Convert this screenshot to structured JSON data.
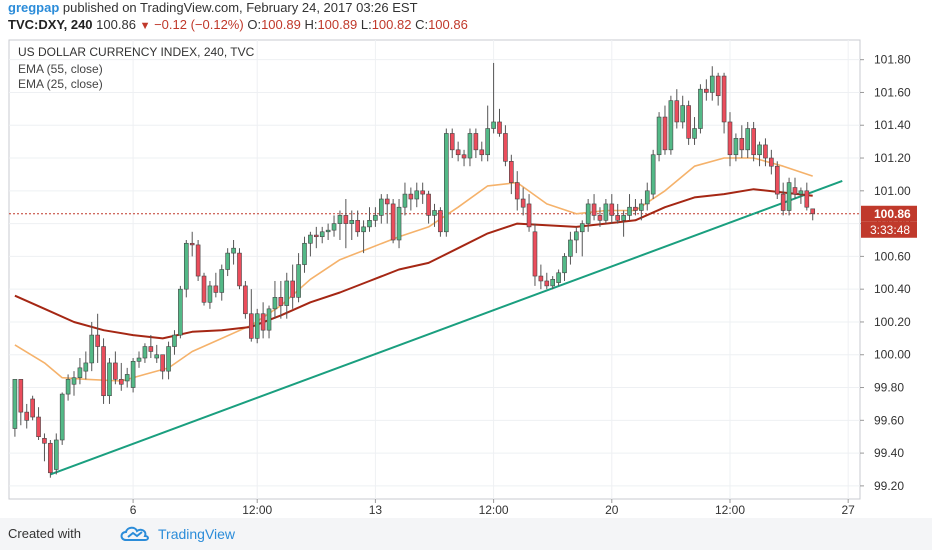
{
  "header": {
    "user": "gregpap",
    "published": "published on TradingView.com, February 24, 2017 03:26 EST",
    "symbol": "TVC:DXY, 240",
    "last": "100.86",
    "change": "−0.12 (−0.12%)",
    "o_label": "O:",
    "o_value": "100.89",
    "h_label": "H:",
    "h_value": "100.89",
    "l_label": "L:",
    "l_value": "100.82",
    "c_label": "C:",
    "c_value": "100.86"
  },
  "footer": {
    "created_with": "Created with",
    "brand": "TradingView"
  },
  "colors": {
    "up": "#53b987",
    "down": "#eb4d5c",
    "ema55": "#a52714",
    "ema25": "#f5b26b",
    "trend": "#1a9f7f",
    "badge": "#c0392b"
  },
  "chart_data": {
    "type": "candlestick",
    "title": "US DOLLAR CURRENCY INDEX, 240, TVC",
    "legend": [
      "EMA (55, close)",
      "EMA (25, close)"
    ],
    "y_ticks": [
      "101.80",
      "101.60",
      "101.40",
      "101.20",
      "101.00",
      "100.80",
      "100.60",
      "100.40",
      "100.20",
      "100.00",
      "99.80",
      "99.60",
      "99.40",
      "99.20"
    ],
    "ylim": [
      99.12,
      101.92
    ],
    "x_ticks": [
      {
        "label": "6",
        "i": 20
      },
      {
        "label": "12:00",
        "i": 41
      },
      {
        "label": "13",
        "i": 61
      },
      {
        "label": "12:00",
        "i": 81
      },
      {
        "label": "20",
        "i": 101
      },
      {
        "label": "12:00",
        "i": 121
      },
      {
        "label": "27",
        "i": 141
      }
    ],
    "x_range": [
      -1,
      143
    ],
    "last_price": "100.86",
    "countdown": "3:33:48",
    "candles": [
      [
        0,
        99.55,
        99.85,
        99.5,
        99.85
      ],
      [
        1,
        99.85,
        99.85,
        99.57,
        99.65
      ],
      [
        2,
        99.65,
        99.7,
        99.55,
        99.6
      ],
      [
        3,
        99.73,
        99.75,
        99.6,
        99.62
      ],
      [
        4,
        99.62,
        99.68,
        99.48,
        99.5
      ],
      [
        5,
        99.49,
        99.52,
        99.35,
        99.46
      ],
      [
        6,
        99.46,
        99.48,
        99.25,
        99.28
      ],
      [
        7,
        99.3,
        99.52,
        99.27,
        99.48
      ],
      [
        8,
        99.48,
        99.77,
        99.45,
        99.76
      ],
      [
        9,
        99.76,
        99.88,
        99.72,
        99.85
      ],
      [
        10,
        99.82,
        99.9,
        99.75,
        99.86
      ],
      [
        11,
        99.86,
        99.98,
        99.82,
        99.92
      ],
      [
        12,
        99.9,
        100.02,
        99.85,
        99.95
      ],
      [
        13,
        99.95,
        100.2,
        99.9,
        100.12
      ],
      [
        14,
        100.12,
        100.25,
        99.95,
        100.05
      ],
      [
        15,
        100.05,
        100.1,
        99.7,
        99.75
      ],
      [
        16,
        99.75,
        99.98,
        99.7,
        99.95
      ],
      [
        17,
        99.95,
        100.02,
        99.82,
        99.85
      ],
      [
        18,
        99.85,
        99.95,
        99.78,
        99.82
      ],
      [
        19,
        99.84,
        99.92,
        99.8,
        99.88
      ],
      [
        20,
        99.8,
        99.98,
        99.77,
        99.96
      ],
      [
        21,
        99.96,
        100.02,
        99.92,
        99.98
      ],
      [
        22,
        99.98,
        100.07,
        99.95,
        100.05
      ],
      [
        23,
        100.05,
        100.12,
        99.98,
        100.02
      ],
      [
        24,
        99.98,
        100.06,
        99.95,
        100.0
      ],
      [
        25,
        100.0,
        100.0,
        99.85,
        99.9
      ],
      [
        26,
        99.9,
        100.08,
        99.85,
        100.05
      ],
      [
        27,
        100.05,
        100.15,
        100.0,
        100.12
      ],
      [
        28,
        100.12,
        100.42,
        100.1,
        100.4
      ],
      [
        29,
        100.4,
        100.7,
        100.35,
        100.68
      ],
      [
        30,
        100.68,
        100.75,
        100.6,
        100.67
      ],
      [
        31,
        100.67,
        100.7,
        100.45,
        100.48
      ],
      [
        32,
        100.48,
        100.5,
        100.3,
        100.32
      ],
      [
        33,
        100.32,
        100.45,
        100.28,
        100.42
      ],
      [
        34,
        100.42,
        100.5,
        100.35,
        100.38
      ],
      [
        35,
        100.38,
        100.55,
        100.33,
        100.52
      ],
      [
        36,
        100.52,
        100.65,
        100.48,
        100.62
      ],
      [
        37,
        100.62,
        100.7,
        100.55,
        100.65
      ],
      [
        38,
        100.62,
        100.65,
        100.4,
        100.42
      ],
      [
        39,
        100.42,
        100.45,
        100.22,
        100.25
      ],
      [
        40,
        100.25,
        100.4,
        100.08,
        100.1
      ],
      [
        41,
        100.1,
        100.28,
        100.07,
        100.25
      ],
      [
        42,
        100.25,
        100.32,
        100.1,
        100.15
      ],
      [
        43,
        100.15,
        100.3,
        100.1,
        100.28
      ],
      [
        44,
        100.28,
        100.45,
        100.22,
        100.35
      ],
      [
        45,
        100.35,
        100.45,
        100.22,
        100.3
      ],
      [
        46,
        100.3,
        100.5,
        100.22,
        100.45
      ],
      [
        47,
        100.45,
        100.55,
        100.28,
        100.35
      ],
      [
        48,
        100.35,
        100.62,
        100.32,
        100.55
      ],
      [
        49,
        100.55,
        100.72,
        100.5,
        100.68
      ],
      [
        50,
        100.68,
        100.75,
        100.6,
        100.73
      ],
      [
        51,
        100.73,
        100.78,
        100.65,
        100.72
      ],
      [
        52,
        100.72,
        100.78,
        100.68,
        100.75
      ],
      [
        53,
        100.75,
        100.8,
        100.7,
        100.76
      ],
      [
        54,
        100.76,
        100.85,
        100.72,
        100.8
      ],
      [
        55,
        100.8,
        100.88,
        100.7,
        100.85
      ],
      [
        56,
        100.85,
        100.95,
        100.65,
        100.8
      ],
      [
        57,
        100.8,
        100.88,
        100.7,
        100.82
      ],
      [
        58,
        100.82,
        100.88,
        100.72,
        100.75
      ],
      [
        59,
        100.75,
        100.82,
        100.62,
        100.78
      ],
      [
        60,
        100.78,
        100.9,
        100.75,
        100.82
      ],
      [
        61,
        100.82,
        100.9,
        100.78,
        100.85
      ],
      [
        62,
        100.85,
        100.98,
        100.8,
        100.95
      ],
      [
        63,
        100.95,
        100.98,
        100.8,
        100.92
      ],
      [
        64,
        100.92,
        100.95,
        100.68,
        100.7
      ],
      [
        65,
        100.7,
        100.95,
        100.65,
        100.9
      ],
      [
        66,
        100.9,
        101.05,
        100.85,
        100.98
      ],
      [
        67,
        100.98,
        101.02,
        100.88,
        100.95
      ],
      [
        68,
        100.95,
        101.05,
        100.9,
        101.0
      ],
      [
        69,
        101.0,
        101.05,
        100.92,
        100.98
      ],
      [
        70,
        100.98,
        101.0,
        100.8,
        100.85
      ],
      [
        71,
        100.85,
        100.92,
        100.78,
        100.88
      ],
      [
        72,
        100.88,
        100.9,
        100.72,
        100.75
      ],
      [
        73,
        100.75,
        101.38,
        100.72,
        101.35
      ],
      [
        74,
        101.35,
        101.38,
        101.2,
        101.25
      ],
      [
        75,
        101.25,
        101.3,
        101.18,
        101.22
      ],
      [
        76,
        101.22,
        101.25,
        101.15,
        101.2
      ],
      [
        77,
        101.2,
        101.38,
        101.15,
        101.35
      ],
      [
        78,
        101.35,
        101.38,
        101.2,
        101.25
      ],
      [
        79,
        101.25,
        101.3,
        101.18,
        101.22
      ],
      [
        80,
        101.22,
        101.52,
        101.18,
        101.38
      ],
      [
        81,
        101.38,
        101.78,
        101.35,
        101.42
      ],
      [
        82,
        101.42,
        101.5,
        101.33,
        101.35
      ],
      [
        83,
        101.35,
        101.4,
        101.15,
        101.18
      ],
      [
        84,
        101.18,
        101.22,
        100.98,
        101.05
      ],
      [
        85,
        101.05,
        101.12,
        100.88,
        100.95
      ],
      [
        86,
        100.95,
        101.02,
        100.85,
        100.9
      ],
      [
        87,
        100.92,
        100.98,
        100.75,
        100.78
      ],
      [
        88,
        100.75,
        100.8,
        100.42,
        100.48
      ],
      [
        89,
        100.48,
        100.55,
        100.4,
        100.45
      ],
      [
        90,
        100.45,
        100.5,
        100.4,
        100.42
      ],
      [
        91,
        100.42,
        100.48,
        100.4,
        100.46
      ],
      [
        92,
        100.44,
        100.52,
        100.42,
        100.5
      ],
      [
        93,
        100.5,
        100.62,
        100.45,
        100.6
      ],
      [
        94,
        100.6,
        100.75,
        100.55,
        100.7
      ],
      [
        95,
        100.7,
        100.78,
        100.62,
        100.75
      ],
      [
        96,
        100.75,
        100.82,
        100.6,
        100.8
      ],
      [
        97,
        100.8,
        100.95,
        100.75,
        100.92
      ],
      [
        98,
        100.92,
        100.98,
        100.82,
        100.85
      ],
      [
        99,
        100.85,
        100.9,
        100.78,
        100.82
      ],
      [
        100,
        100.82,
        100.95,
        100.8,
        100.92
      ],
      [
        101,
        100.92,
        100.98,
        100.8,
        100.85
      ],
      [
        102,
        100.85,
        100.92,
        100.8,
        100.82
      ],
      [
        103,
        100.82,
        100.88,
        100.72,
        100.85
      ],
      [
        104,
        100.85,
        100.98,
        100.82,
        100.9
      ],
      [
        105,
        100.9,
        100.95,
        100.85,
        100.88
      ],
      [
        106,
        100.88,
        100.95,
        100.82,
        100.92
      ],
      [
        107,
        100.92,
        101.05,
        100.88,
        101.0
      ],
      [
        108,
        100.98,
        101.25,
        100.95,
        101.22
      ],
      [
        109,
        101.22,
        101.48,
        101.18,
        101.45
      ],
      [
        110,
        101.45,
        101.52,
        101.22,
        101.25
      ],
      [
        111,
        101.25,
        101.58,
        101.22,
        101.55
      ],
      [
        112,
        101.55,
        101.62,
        101.38,
        101.42
      ],
      [
        113,
        101.42,
        101.58,
        101.38,
        101.52
      ],
      [
        114,
        101.52,
        101.55,
        101.28,
        101.32
      ],
      [
        115,
        101.32,
        101.45,
        101.28,
        101.38
      ],
      [
        116,
        101.38,
        101.65,
        101.35,
        101.62
      ],
      [
        117,
        101.62,
        101.68,
        101.55,
        101.6
      ],
      [
        118,
        101.6,
        101.76,
        101.55,
        101.7
      ],
      [
        119,
        101.7,
        101.72,
        101.52,
        101.58
      ],
      [
        120,
        101.7,
        101.72,
        101.35,
        101.42
      ],
      [
        121,
        101.42,
        101.48,
        101.15,
        101.22
      ],
      [
        122,
        101.22,
        101.35,
        101.18,
        101.32
      ],
      [
        123,
        101.32,
        101.4,
        101.2,
        101.25
      ],
      [
        124,
        101.25,
        101.42,
        101.2,
        101.38
      ],
      [
        125,
        101.38,
        101.42,
        101.18,
        101.22
      ],
      [
        126,
        101.22,
        101.3,
        101.15,
        101.28
      ],
      [
        127,
        101.28,
        101.32,
        101.15,
        101.2
      ],
      [
        128,
        101.2,
        101.25,
        101.1,
        101.15
      ],
      [
        129,
        101.15,
        101.18,
        100.95,
        100.98
      ],
      [
        130,
        100.98,
        101.05,
        100.85,
        100.88
      ],
      [
        131,
        100.88,
        101.08,
        100.85,
        101.05
      ],
      [
        132,
        101.02,
        101.08,
        100.95,
        100.98
      ],
      [
        133,
        100.98,
        101.02,
        100.92,
        101.0
      ],
      [
        134,
        101.0,
        101.05,
        100.88,
        100.9
      ],
      [
        135,
        100.89,
        100.89,
        100.82,
        100.86
      ]
    ],
    "ema55": [
      [
        0,
        100.36
      ],
      [
        5,
        100.28
      ],
      [
        10,
        100.2
      ],
      [
        15,
        100.15
      ],
      [
        20,
        100.12
      ],
      [
        25,
        100.1
      ],
      [
        30,
        100.14
      ],
      [
        35,
        100.15
      ],
      [
        40,
        100.17
      ],
      [
        45,
        100.24
      ],
      [
        50,
        100.32
      ],
      [
        55,
        100.38
      ],
      [
        60,
        100.45
      ],
      [
        65,
        100.52
      ],
      [
        70,
        100.56
      ],
      [
        75,
        100.65
      ],
      [
        80,
        100.74
      ],
      [
        85,
        100.8
      ],
      [
        90,
        100.79
      ],
      [
        95,
        100.78
      ],
      [
        100,
        100.8
      ],
      [
        105,
        100.82
      ],
      [
        110,
        100.9
      ],
      [
        115,
        100.96
      ],
      [
        120,
        100.98
      ],
      [
        125,
        101.01
      ],
      [
        130,
        100.99
      ],
      [
        135,
        100.97
      ]
    ],
    "ema25": [
      [
        0,
        100.06
      ],
      [
        5,
        99.95
      ],
      [
        8,
        99.86
      ],
      [
        12,
        99.85
      ],
      [
        18,
        99.84
      ],
      [
        22,
        99.88
      ],
      [
        26,
        99.92
      ],
      [
        30,
        100.02
      ],
      [
        35,
        100.1
      ],
      [
        40,
        100.18
      ],
      [
        45,
        100.3
      ],
      [
        50,
        100.46
      ],
      [
        55,
        100.58
      ],
      [
        60,
        100.65
      ],
      [
        65,
        100.72
      ],
      [
        70,
        100.78
      ],
      [
        75,
        100.9
      ],
      [
        80,
        101.03
      ],
      [
        85,
        101.05
      ],
      [
        90,
        100.92
      ],
      [
        95,
        100.86
      ],
      [
        100,
        100.88
      ],
      [
        105,
        100.88
      ],
      [
        110,
        101.0
      ],
      [
        115,
        101.15
      ],
      [
        120,
        101.2
      ],
      [
        125,
        101.2
      ],
      [
        130,
        101.15
      ],
      [
        135,
        101.09
      ]
    ],
    "trendline": [
      [
        6,
        99.27
      ],
      [
        140,
        101.06
      ]
    ]
  }
}
